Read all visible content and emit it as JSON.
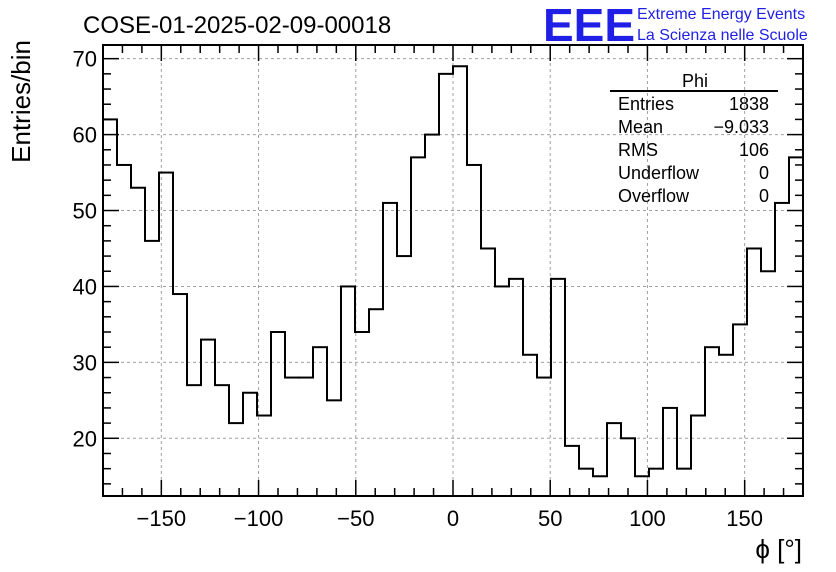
{
  "chart_data": {
    "type": "histogram",
    "title": "COSE-01-2025-02-09-00018",
    "xlabel": "ϕ [°]",
    "ylabel": "Entries/bin",
    "xlim": [
      -180,
      180
    ],
    "ylim": [
      12.4,
      71.8
    ],
    "bin_width": 7.2,
    "x_ticks": [
      -150,
      -100,
      -50,
      0,
      50,
      100,
      150
    ],
    "x_tick_labels": [
      "−150",
      "−100",
      "−50",
      "0",
      "50",
      "100",
      "150"
    ],
    "y_ticks": [
      20,
      30,
      40,
      50,
      60,
      70
    ],
    "y_tick_labels": [
      "20",
      "30",
      "40",
      "50",
      "60",
      "70"
    ],
    "grid": true,
    "values": [
      62,
      56,
      53,
      46,
      55,
      39,
      27,
      33,
      27,
      22,
      26,
      23,
      34,
      28,
      28,
      32,
      25,
      40,
      34,
      37,
      51,
      44,
      57,
      60,
      68,
      69,
      56,
      45,
      40,
      41,
      31,
      28,
      41,
      19,
      16,
      15,
      22,
      20,
      15,
      16,
      24,
      16,
      23,
      32,
      31,
      35,
      45,
      42,
      51,
      57
    ],
    "stats": {
      "name": "Phi",
      "rows": [
        {
          "label": "Entries",
          "value": "1838"
        },
        {
          "label": "Mean",
          "value": "−9.033"
        },
        {
          "label": "RMS",
          "value": "106"
        },
        {
          "label": "Underflow",
          "value": "0"
        },
        {
          "label": "Overflow",
          "value": "0"
        }
      ]
    }
  },
  "logo": {
    "mark": "EEE",
    "line1": "Extreme Energy Events",
    "line2": "La Scienza nelle Scuole"
  },
  "colors": {
    "line": "#000000",
    "grid": "#a0a0a0",
    "logo": "#1f1fe6"
  }
}
